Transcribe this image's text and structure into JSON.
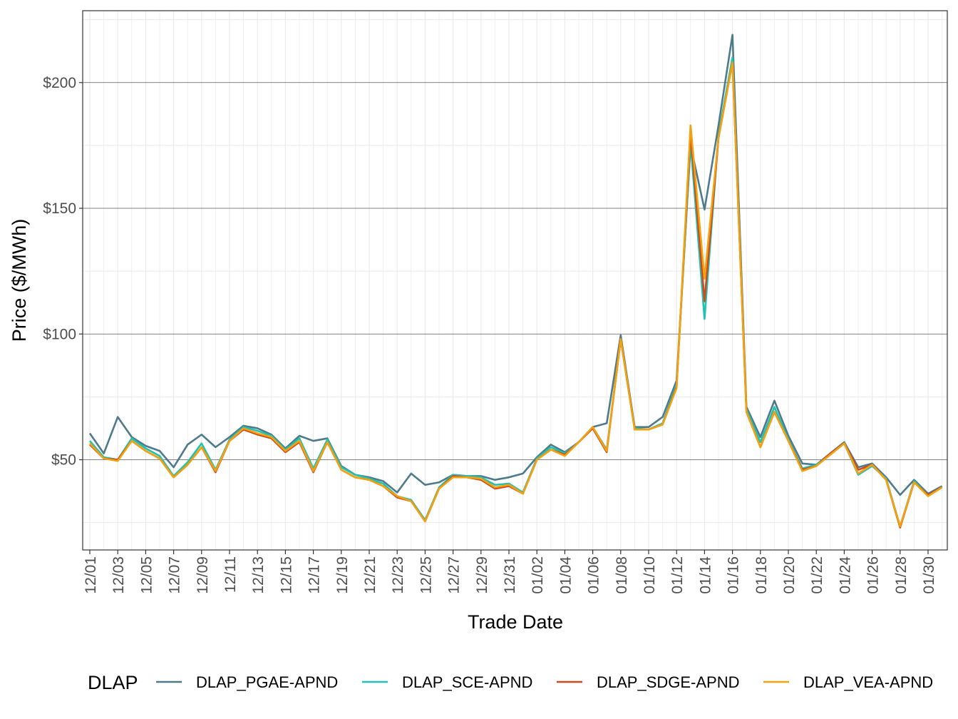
{
  "chart_data": {
    "type": "line",
    "xlabel": "Trade Date",
    "ylabel": "Price ($/MWh)",
    "ylim": [
      15,
      226
    ],
    "y_ticks": [
      {
        "value": 50,
        "label": "$50"
      },
      {
        "value": 100,
        "label": "$100"
      },
      {
        "value": 150,
        "label": "$150"
      },
      {
        "value": 200,
        "label": "$200"
      }
    ],
    "x_tick_labels": [
      "12/01",
      "12/03",
      "12/05",
      "12/07",
      "12/09",
      "12/11",
      "12/13",
      "12/15",
      "12/17",
      "12/19",
      "12/21",
      "12/23",
      "12/25",
      "12/27",
      "12/29",
      "12/31",
      "01/02",
      "01/04",
      "01/06",
      "01/08",
      "01/10",
      "01/12",
      "01/14",
      "01/16",
      "01/18",
      "01/20",
      "01/22",
      "01/24",
      "01/26",
      "01/28",
      "01/30"
    ],
    "grid": true,
    "legend": {
      "title": "DLAP",
      "position": "bottom"
    },
    "x": [
      "12/01",
      "12/02",
      "12/03",
      "12/04",
      "12/05",
      "12/06",
      "12/07",
      "12/08",
      "12/09",
      "12/10",
      "12/11",
      "12/12",
      "12/13",
      "12/14",
      "12/15",
      "12/16",
      "12/17",
      "12/18",
      "12/19",
      "12/20",
      "12/21",
      "12/22",
      "12/23",
      "12/24",
      "12/25",
      "12/26",
      "12/27",
      "12/28",
      "12/29",
      "12/30",
      "12/31",
      "01/01",
      "01/02",
      "01/03",
      "01/04",
      "01/05",
      "01/06",
      "01/07",
      "01/08",
      "01/09",
      "01/10",
      "01/11",
      "01/12",
      "01/13",
      "01/14",
      "01/15",
      "01/16",
      "01/17",
      "01/18",
      "01/19",
      "01/20",
      "01/21",
      "01/22",
      "01/23",
      "01/24",
      "01/25",
      "01/26",
      "01/27",
      "01/28",
      "01/29",
      "01/30",
      "01/31"
    ],
    "series": [
      {
        "name": "DLAP_PGAE-APND",
        "color": "#4e7a8c",
        "values": [
          60.5,
          52.5,
          67,
          59,
          55.5,
          53.5,
          47,
          56,
          60,
          55,
          59,
          63.5,
          62.5,
          60,
          54.5,
          59.5,
          57.5,
          58.5,
          47.5,
          44,
          43,
          41.5,
          37,
          44.5,
          40,
          41,
          44,
          43.5,
          43.5,
          42,
          43,
          44.5,
          51,
          56,
          53,
          57,
          63,
          64.5,
          99.5,
          63,
          63,
          67,
          81.5,
          175,
          149.5,
          183,
          219,
          71,
          59,
          73.5,
          59.5,
          48.5,
          48,
          52.5,
          57,
          47,
          48.5,
          43,
          36,
          42,
          36.5,
          39.5
        ]
      },
      {
        "name": "DLAP_SCE-APND",
        "color": "#1fc3b2",
        "values": [
          57.5,
          51,
          50,
          58.5,
          54.5,
          51.5,
          43.5,
          49,
          56.5,
          46,
          58,
          63,
          61.5,
          59.5,
          54,
          58.5,
          46.5,
          58,
          47,
          44,
          42.5,
          40.5,
          35.5,
          34,
          26,
          39,
          44,
          43.5,
          43,
          40,
          40.5,
          37,
          50.5,
          55,
          52.5,
          57,
          63,
          54,
          98,
          62.5,
          62,
          64.5,
          80,
          176,
          106,
          179,
          210,
          70,
          57,
          71,
          58,
          46.5,
          48,
          52,
          56.5,
          44,
          47.5,
          42.5,
          23.5,
          41.5,
          36,
          39
        ]
      },
      {
        "name": "DLAP_SDGE-APND",
        "color": "#cc4a1e",
        "values": [
          56,
          50.5,
          50,
          57.5,
          53.5,
          50.5,
          43,
          48,
          55,
          45,
          57.5,
          62,
          60,
          58.5,
          53,
          57,
          45,
          57,
          46,
          43,
          42,
          39.5,
          35,
          33.5,
          25.5,
          38.5,
          43.5,
          43,
          42,
          38.5,
          39.5,
          36.5,
          50,
          54,
          52,
          57,
          62.5,
          53,
          98,
          62,
          62,
          64,
          79,
          180,
          113,
          178,
          208,
          69,
          55,
          69,
          57.5,
          46,
          47.5,
          52.5,
          56.5,
          46,
          48,
          42,
          23,
          41,
          36,
          39
        ]
      },
      {
        "name": "DLAP_VEA-APND",
        "color": "#f5a10d",
        "values": [
          56.5,
          50.5,
          49.5,
          57.5,
          53.5,
          50.5,
          43,
          48,
          55,
          45.5,
          57.5,
          62.5,
          60.5,
          59,
          53.5,
          57.5,
          45.5,
          57,
          46,
          43,
          42,
          39.5,
          35.5,
          33.5,
          25.5,
          38.5,
          43,
          43,
          42.5,
          39,
          40,
          36.5,
          50,
          54,
          51.5,
          57,
          63,
          53.5,
          98,
          62,
          62,
          64,
          78.5,
          183,
          122,
          178,
          208,
          69,
          55,
          69,
          57.5,
          45.5,
          47.5,
          52,
          56.5,
          44.5,
          48,
          42,
          23.5,
          41,
          35.5,
          39
        ]
      }
    ]
  }
}
